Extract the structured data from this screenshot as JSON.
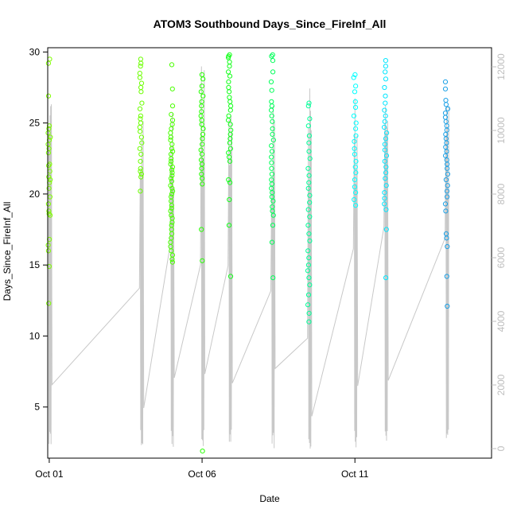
{
  "chart_data": {
    "type": "scatter",
    "title": "ATOM3 Southbound Days_Since_FireInf_All",
    "xlabel": "Date",
    "ylabel": "Days_Since_FireInf_All",
    "x_ticks": [
      "Oct 01",
      "Oct 06",
      "Oct 11"
    ],
    "y_ticks": [
      5,
      10,
      15,
      20,
      25,
      30
    ],
    "y2_ticks": [
      0,
      2000,
      4000,
      6000,
      8000,
      10000,
      12000
    ],
    "xlim": [
      0.95,
      15.47
    ],
    "ylim": [
      1.4,
      30.3
    ],
    "y2lim": [
      -300,
      12600
    ],
    "grid": false,
    "secondary_axis_color": "#bdbdbd",
    "line_color": "#c8c8c8",
    "clusters": [
      {
        "day": 1.0,
        "color": "#80ff00",
        "points": [
          29.5,
          29.2,
          26.9,
          24.8,
          24.6,
          24.3,
          24.0,
          23.8,
          23.5,
          23.2,
          22.9,
          22.1,
          22.0,
          21.6,
          21.2,
          21.0,
          20.8,
          20.4,
          19.8,
          19.3,
          18.8,
          18.6,
          18.5,
          16.8,
          16.4,
          16.0,
          14.9,
          12.3
        ]
      },
      {
        "day": 4.0,
        "color": "#6cff00",
        "points": [
          29.5,
          29.2,
          29.0,
          28.5,
          28.2,
          27.8,
          27.5,
          27.2,
          26.4,
          26.0,
          25.5,
          25.3,
          25.0,
          24.7,
          24.4,
          24.0,
          23.6,
          23.2,
          22.8,
          22.3,
          21.8,
          21.6,
          21.4,
          21.2,
          20.2
        ]
      },
      {
        "day": 5.0,
        "color": "#49ff00",
        "points": [
          29.1,
          27.4,
          26.2,
          25.6,
          25.2,
          24.9,
          24.6,
          24.3,
          24.0,
          23.8,
          23.5,
          23.2,
          23.0,
          22.8,
          22.5,
          22.3,
          22.1,
          21.9,
          21.7,
          21.5,
          21.3,
          21.1,
          20.9,
          20.6,
          20.4,
          20.2,
          20.0,
          19.8,
          19.5,
          19.2,
          19.0,
          18.8,
          18.5,
          18.3,
          18.0,
          17.8,
          17.5,
          17.2,
          16.9,
          16.6,
          16.3,
          16.0,
          15.7,
          15.4,
          15.2
        ]
      },
      {
        "day": 6.0,
        "color": "#26ff00",
        "points": [
          28.4,
          28.1,
          27.6,
          27.2,
          26.9,
          26.5,
          26.2,
          25.8,
          25.5,
          25.2,
          24.9,
          24.6,
          24.2,
          23.9,
          23.5,
          23.1,
          22.8,
          22.4,
          22.1,
          21.8,
          21.4,
          21.1,
          20.7,
          17.5,
          15.3,
          1.9
        ]
      },
      {
        "day": 6.9,
        "color": "#13ff1a",
        "points": [
          29.8,
          29.7,
          29.6,
          29.3,
          29.0,
          28.6,
          28.3,
          27.9,
          27.5,
          27.2,
          26.8,
          26.5,
          26.2,
          25.9,
          25.5,
          25.2,
          24.9,
          24.5,
          24.2,
          23.9,
          23.6,
          23.2,
          22.9,
          22.6,
          22.3,
          21.0,
          20.8,
          19.6,
          17.8,
          14.2
        ]
      },
      {
        "day": 8.3,
        "color": "#00ff59",
        "points": [
          29.8,
          29.7,
          29.4,
          28.6,
          27.9,
          27.3,
          26.5,
          26.2,
          25.9,
          25.5,
          25.1,
          24.6,
          24.2,
          23.8,
          23.4,
          23.0,
          22.6,
          22.2,
          21.8,
          21.4,
          21.0,
          20.7,
          20.4,
          20.1,
          19.8,
          19.5,
          19.1,
          18.8,
          18.5,
          17.8,
          16.6,
          14.1
        ]
      },
      {
        "day": 9.5,
        "color": "#00ff99",
        "points": [
          26.4,
          26.2,
          25.3,
          24.8,
          24.1,
          23.6,
          23.0,
          22.5,
          21.8,
          21.3,
          20.8,
          20.4,
          19.9,
          19.4,
          18.9,
          18.4,
          17.8,
          17.2,
          16.7,
          16.0,
          15.5,
          15.0,
          14.6,
          14.1,
          13.6,
          12.9,
          12.2,
          11.6,
          11.0
        ]
      },
      {
        "day": 11.0,
        "color": "#00ffff",
        "points": [
          28.4,
          28.2,
          27.6,
          27.2,
          26.5,
          26.1,
          25.5,
          25.0,
          24.6,
          24.1,
          23.7,
          23.2,
          22.8,
          22.3,
          21.9,
          21.5,
          21.0,
          20.5,
          20.1,
          19.6,
          19.2
        ]
      },
      {
        "day": 12.0,
        "color": "#00e6ff",
        "points": [
          29.4,
          29.0,
          28.6,
          28.1,
          27.5,
          26.9,
          26.4,
          25.9,
          25.5,
          25.1,
          24.7,
          24.3,
          23.9,
          23.5,
          23.1,
          22.7,
          22.3,
          21.9,
          21.5,
          21.1,
          20.6,
          20.1,
          19.7,
          19.3,
          18.9,
          17.5,
          14.1
        ]
      },
      {
        "day": 14.0,
        "color": "#1aa0e6",
        "points": [
          27.9,
          27.4,
          26.6,
          26.3,
          26.0,
          25.7,
          25.4,
          25.1,
          24.8,
          24.5,
          24.2,
          23.9,
          23.6,
          23.3,
          23.0,
          22.7,
          22.4,
          22.1,
          21.8,
          21.4,
          21.0,
          20.6,
          20.2,
          19.8,
          19.3,
          18.8,
          17.2,
          16.9,
          16.3,
          14.2,
          12.1
        ]
      }
    ]
  }
}
